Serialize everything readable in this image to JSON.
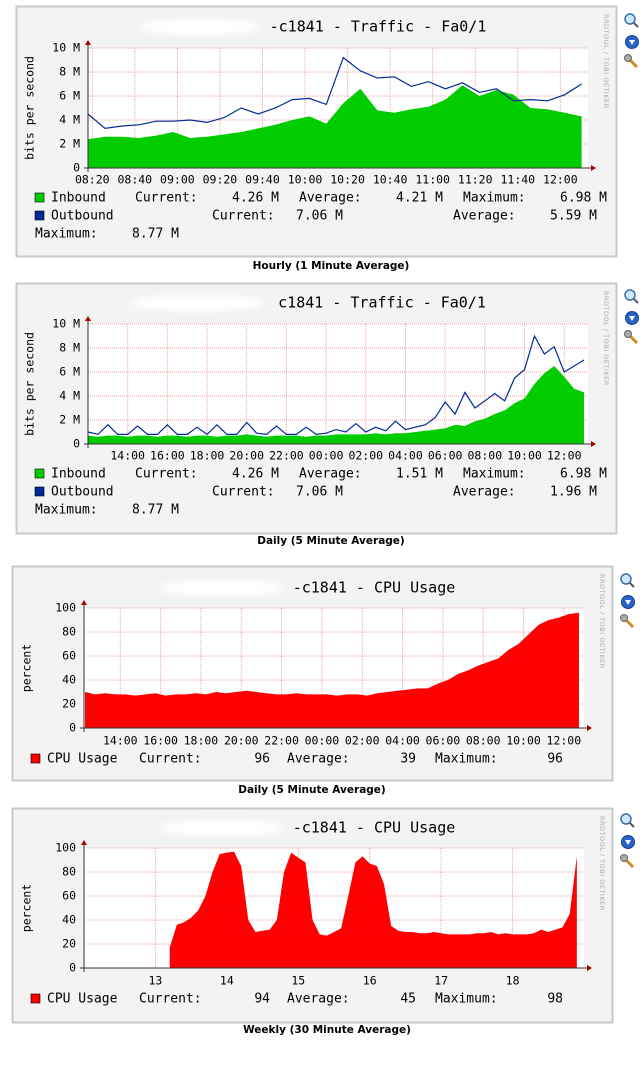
{
  "chart_data": [
    {
      "type": "area",
      "title": "-c1841 - Traffic - Fa0/1",
      "ylabel": "bits per second",
      "caption": "Hourly (1 Minute Average)",
      "watermark": "RRDTOOL / TOBI OETIKER",
      "grid": true,
      "xlim": [
        498,
        733
      ],
      "xticks": [
        {
          "value": 500,
          "label": "08:20"
        },
        {
          "value": 520,
          "label": "08:40"
        },
        {
          "value": 540,
          "label": "09:00"
        },
        {
          "value": 560,
          "label": "09:20"
        },
        {
          "value": 580,
          "label": "09:40"
        },
        {
          "value": 600,
          "label": "10:00"
        },
        {
          "value": 620,
          "label": "10:20"
        },
        {
          "value": 640,
          "label": "10:40"
        },
        {
          "value": 660,
          "label": "11:00"
        },
        {
          "value": 680,
          "label": "11:20"
        },
        {
          "value": 700,
          "label": "11:40"
        },
        {
          "value": 720,
          "label": "12:00"
        }
      ],
      "ylim": [
        0,
        10000000
      ],
      "yticks": [
        0,
        {
          "value": 2000000,
          "label": "2 M"
        },
        {
          "value": 4000000,
          "label": "4 M"
        },
        {
          "value": 6000000,
          "label": "6 M"
        },
        {
          "value": 8000000,
          "label": "8 M"
        },
        {
          "value": 10000000,
          "label": "10 M"
        }
      ],
      "x": [
        498,
        506,
        514,
        522,
        530,
        538,
        546,
        554,
        562,
        570,
        578,
        586,
        594,
        602,
        610,
        618,
        626,
        634,
        642,
        650,
        658,
        666,
        674,
        682,
        690,
        698,
        706,
        714,
        722,
        730
      ],
      "series": [
        {
          "name": "Inbound",
          "color": "#00cc00",
          "style": "area",
          "values": [
            2400000,
            2600000,
            2600000,
            2500000,
            2700000,
            3000000,
            2500000,
            2600000,
            2800000,
            3000000,
            3300000,
            3600000,
            4000000,
            4300000,
            3700000,
            5400000,
            6600000,
            4800000,
            4600000,
            4900000,
            5100000,
            5700000,
            6900000,
            6000000,
            6500000,
            6100000,
            5000000,
            4900000,
            4600000,
            4300000
          ],
          "stats": [
            {
              "name": "Current:",
              "text": "4.26 M"
            },
            {
              "name": "Average:",
              "text": "4.21 M"
            },
            {
              "name": "Maximum:",
              "text": "6.98 M"
            }
          ]
        },
        {
          "name": "Outbound",
          "color": "#002a97",
          "style": "line",
          "values": [
            4500000,
            3300000,
            3500000,
            3600000,
            3900000,
            3900000,
            4000000,
            3800000,
            4200000,
            5000000,
            4500000,
            5000000,
            5700000,
            5800000,
            5300000,
            9200000,
            8100000,
            7500000,
            7600000,
            6800000,
            7200000,
            6600000,
            7100000,
            6300000,
            6600000,
            5600000,
            5700000,
            5600000,
            6100000,
            7000000
          ],
          "stats": [
            {
              "name": "Current:",
              "text": "7.06 M"
            },
            {
              "name": "Average:",
              "text": "5.59 M"
            },
            {
              "name": "Maximum:",
              "text": "8.77 M"
            }
          ]
        }
      ]
    },
    {
      "type": "area",
      "title": "c1841 - Traffic - Fa0/1",
      "ylabel": "bits per second",
      "caption": "Daily (5 Minute Average)",
      "watermark": "RRDTOOL / TOBI OETIKER",
      "grid": true,
      "xlim": [
        12,
        37.2
      ],
      "xticks": [
        {
          "value": 14,
          "label": "14:00"
        },
        {
          "value": 16,
          "label": "16:00"
        },
        {
          "value": 18,
          "label": "18:00"
        },
        {
          "value": 20,
          "label": "20:00"
        },
        {
          "value": 22,
          "label": "22:00"
        },
        {
          "value": 24,
          "label": "00:00"
        },
        {
          "value": 26,
          "label": "02:00"
        },
        {
          "value": 28,
          "label": "04:00"
        },
        {
          "value": 30,
          "label": "06:00"
        },
        {
          "value": 32,
          "label": "08:00"
        },
        {
          "value": 34,
          "label": "10:00"
        },
        {
          "value": 36,
          "label": "12:00"
        }
      ],
      "ylim": [
        0,
        10000000
      ],
      "yticks": [
        0,
        {
          "value": 2000000,
          "label": "2 M"
        },
        {
          "value": 4000000,
          "label": "4 M"
        },
        {
          "value": 6000000,
          "label": "6 M"
        },
        {
          "value": 8000000,
          "label": "8 M"
        },
        {
          "value": 10000000,
          "label": "10 M"
        }
      ],
      "x": [
        12,
        12.5,
        13,
        13.5,
        14,
        14.5,
        15,
        15.5,
        16,
        16.5,
        17,
        17.5,
        18,
        18.5,
        19,
        19.5,
        20,
        20.5,
        21,
        21.5,
        22,
        22.5,
        23,
        23.5,
        24,
        24.5,
        25,
        25.5,
        26,
        26.5,
        27,
        27.5,
        28,
        28.5,
        29,
        29.5,
        30,
        30.5,
        31,
        31.5,
        32,
        32.5,
        33,
        33.5,
        34,
        34.5,
        35,
        35.5,
        36,
        36.5,
        37
      ],
      "series": [
        {
          "name": "Inbound",
          "color": "#00cc00",
          "style": "area",
          "values": [
            700000,
            600000,
            700000,
            700000,
            600000,
            700000,
            700000,
            600000,
            700000,
            700000,
            600000,
            700000,
            700000,
            600000,
            700000,
            700000,
            800000,
            700000,
            600000,
            700000,
            700000,
            700000,
            600000,
            700000,
            700000,
            800000,
            800000,
            800000,
            800000,
            900000,
            800000,
            900000,
            900000,
            1000000,
            1100000,
            1200000,
            1300000,
            1600000,
            1500000,
            1900000,
            2100000,
            2500000,
            2800000,
            3400000,
            3800000,
            5000000,
            5900000,
            6500000,
            5600000,
            4600000,
            4300000
          ],
          "stats": [
            {
              "name": "Current:",
              "text": "4.26 M"
            },
            {
              "name": "Average:",
              "text": "1.51 M"
            },
            {
              "name": "Maximum:",
              "text": "6.98 M"
            }
          ]
        },
        {
          "name": "Outbound",
          "color": "#002a97",
          "style": "line",
          "values": [
            1000000,
            800000,
            1600000,
            800000,
            800000,
            1500000,
            800000,
            800000,
            1600000,
            800000,
            800000,
            1400000,
            800000,
            1600000,
            800000,
            800000,
            1800000,
            900000,
            800000,
            1500000,
            800000,
            800000,
            1400000,
            800000,
            900000,
            1200000,
            1000000,
            1700000,
            1000000,
            1400000,
            1100000,
            1900000,
            1200000,
            1400000,
            1600000,
            2200000,
            3500000,
            2500000,
            4300000,
            3000000,
            3600000,
            4200000,
            3600000,
            5500000,
            6200000,
            9000000,
            7500000,
            8100000,
            6000000,
            6500000,
            7000000
          ],
          "stats": [
            {
              "name": "Current:",
              "text": "7.06 M"
            },
            {
              "name": "Average:",
              "text": "1.96 M"
            },
            {
              "name": "Maximum:",
              "text": "8.77 M"
            }
          ]
        }
      ]
    },
    {
      "type": "area",
      "title": "-c1841 - CPU Usage",
      "ylabel": "percent",
      "caption": "Daily (5 Minute Average)",
      "watermark": "RRDTOOL / TOBI OETIKER",
      "grid": true,
      "xlim": [
        12.2,
        37
      ],
      "xticks": [
        {
          "value": 14,
          "label": "14:00"
        },
        {
          "value": 16,
          "label": "16:00"
        },
        {
          "value": 18,
          "label": "18:00"
        },
        {
          "value": 20,
          "label": "20:00"
        },
        {
          "value": 22,
          "label": "22:00"
        },
        {
          "value": 24,
          "label": "00:00"
        },
        {
          "value": 26,
          "label": "02:00"
        },
        {
          "value": 28,
          "label": "04:00"
        },
        {
          "value": 30,
          "label": "06:00"
        },
        {
          "value": 32,
          "label": "08:00"
        },
        {
          "value": 34,
          "label": "10:00"
        },
        {
          "value": 36,
          "label": "12:00"
        }
      ],
      "ylim": [
        0,
        100
      ],
      "yticks": [
        0,
        20,
        40,
        60,
        80,
        100
      ],
      "x": [
        12.25,
        12.75,
        13.25,
        13.75,
        14.25,
        14.75,
        15.25,
        15.75,
        16.25,
        16.75,
        17.25,
        17.75,
        18.25,
        18.75,
        19.25,
        19.75,
        20.25,
        20.75,
        21.25,
        21.75,
        22.25,
        22.75,
        23.25,
        23.75,
        24.25,
        24.75,
        25.25,
        25.75,
        26.25,
        26.75,
        27.25,
        27.75,
        28.25,
        28.75,
        29.25,
        29.75,
        30.25,
        30.75,
        31.25,
        31.75,
        32.25,
        32.75,
        33.25,
        33.75,
        34.25,
        34.75,
        35.25,
        35.75,
        36.25,
        36.75
      ],
      "series": [
        {
          "name": "CPU Usage",
          "color": "#ff0000",
          "style": "area",
          "values": [
            30,
            28,
            29,
            28,
            28,
            27,
            28,
            29,
            27,
            28,
            28,
            29,
            28,
            30,
            29,
            30,
            31,
            30,
            29,
            28,
            28,
            29,
            28,
            28,
            28,
            27,
            28,
            28,
            27,
            29,
            30,
            31,
            32,
            33,
            33,
            37,
            40,
            45,
            48,
            52,
            55,
            58,
            65,
            70,
            78,
            86,
            90,
            92,
            95,
            96
          ],
          "stats": [
            {
              "name": "Current:",
              "text": "96"
            },
            {
              "name": "Average:",
              "text": "39"
            },
            {
              "name": "Maximum:",
              "text": "96"
            }
          ]
        }
      ]
    },
    {
      "type": "area",
      "title": "-c1841 - CPU Usage",
      "ylabel": "percent",
      "caption": "Weekly (30 Minute Average)",
      "watermark": "RRDTOOL / TOBI OETIKER",
      "grid": true,
      "xlim": [
        12.5,
        19.5
      ],
      "xticks": [
        {
          "value": 13.5,
          "label": "13"
        },
        {
          "value": 14.5,
          "label": "14"
        },
        {
          "value": 15.5,
          "label": "15"
        },
        {
          "value": 16.5,
          "label": "16"
        },
        {
          "value": 17.5,
          "label": "17"
        },
        {
          "value": 18.5,
          "label": "18"
        }
      ],
      "ylim": [
        0,
        100
      ],
      "yticks": [
        0,
        20,
        40,
        60,
        80,
        100
      ],
      "x": [
        12.6,
        12.7,
        12.8,
        12.9,
        13.0,
        13.1,
        13.2,
        13.3,
        13.4,
        13.5,
        13.6,
        13.7,
        13.8,
        13.9,
        14.0,
        14.1,
        14.2,
        14.3,
        14.4,
        14.5,
        14.6,
        14.7,
        14.8,
        14.9,
        15.0,
        15.1,
        15.2,
        15.3,
        15.4,
        15.5,
        15.6,
        15.7,
        15.8,
        15.9,
        16.0,
        16.1,
        16.2,
        16.3,
        16.4,
        16.5,
        16.6,
        16.7,
        16.8,
        16.9,
        17.0,
        17.1,
        17.2,
        17.3,
        17.4,
        17.5,
        17.6,
        17.7,
        17.8,
        17.9,
        18.0,
        18.1,
        18.2,
        18.3,
        18.4,
        18.5,
        18.6,
        18.7,
        18.8,
        18.9,
        19.0,
        19.1,
        19.2,
        19.3,
        19.4
      ],
      "series": [
        {
          "name": "CPU Usage",
          "color": "#ff0000",
          "style": "area",
          "values": [
            null,
            null,
            null,
            null,
            null,
            null,
            null,
            null,
            null,
            null,
            null,
            17,
            36,
            38,
            42,
            48,
            60,
            80,
            95,
            96,
            97,
            85,
            40,
            30,
            31,
            32,
            40,
            80,
            96,
            92,
            88,
            40,
            28,
            27,
            30,
            33,
            60,
            88,
            93,
            87,
            85,
            70,
            35,
            31,
            30,
            30,
            29,
            29,
            30,
            29,
            28,
            28,
            28,
            28,
            29,
            29,
            30,
            28,
            29,
            28,
            28,
            28,
            29,
            32,
            30,
            32,
            34,
            45,
            93
          ],
          "stats": [
            {
              "name": "Current:",
              "text": "94"
            },
            {
              "name": "Average:",
              "text": "45"
            },
            {
              "name": "Maximum:",
              "text": "98"
            }
          ]
        }
      ]
    }
  ]
}
